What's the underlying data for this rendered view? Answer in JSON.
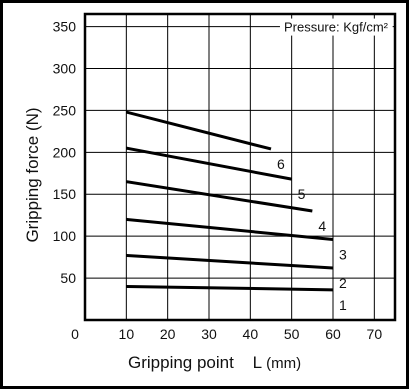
{
  "chart_data": {
    "type": "line",
    "title": "",
    "xlabel": "Gripping point",
    "xlabel_symbol": "L",
    "xlabel_unit": "(mm)",
    "ylabel": "Gripping force (N)",
    "annotation": "Pressure: Kgf/cm²",
    "origin_label": "0",
    "xlim": [
      0,
      75
    ],
    "ylim": [
      0,
      365
    ],
    "x_ticks": [
      10,
      20,
      30,
      40,
      50,
      60,
      70
    ],
    "y_ticks": [
      50,
      100,
      150,
      200,
      250,
      300,
      350
    ],
    "grid": true,
    "series": [
      {
        "name": "1",
        "x": [
          10,
          60
        ],
        "y": [
          40,
          36
        ]
      },
      {
        "name": "2",
        "x": [
          10,
          60
        ],
        "y": [
          77,
          62
        ]
      },
      {
        "name": "3",
        "x": [
          10,
          60
        ],
        "y": [
          120,
          96
        ]
      },
      {
        "name": "4",
        "x": [
          10,
          55
        ],
        "y": [
          165,
          130
        ]
      },
      {
        "name": "5",
        "x": [
          10,
          50
        ],
        "y": [
          205,
          168
        ]
      },
      {
        "name": "6",
        "x": [
          10,
          45
        ],
        "y": [
          248,
          204
        ]
      }
    ]
  }
}
